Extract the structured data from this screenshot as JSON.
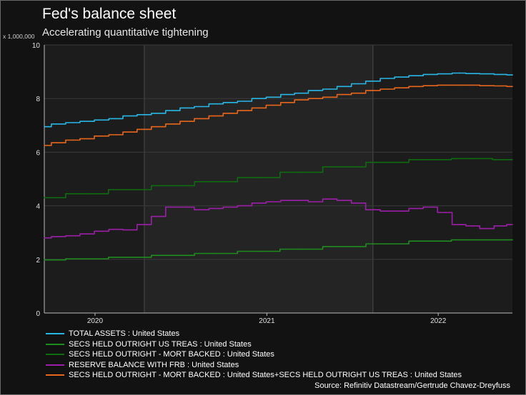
{
  "header": {
    "title": "Fed's balance sheet",
    "subtitle": "Accelerating quantitative tightening",
    "y_unit": "x 1,000,000"
  },
  "source": "Source: Refinitiv Datastream/Gertrude Chavez-Dreyfuss",
  "colors": {
    "background": "#121212",
    "plot_light": "#1c1c1c",
    "plot_dark": "#242424",
    "grid": "#3a3a3a",
    "axis": "#bbbbbb"
  },
  "chart_data": {
    "type": "line",
    "title": "Fed's balance sheet",
    "subtitle": "Accelerating quantitative tightening",
    "ylabel": "",
    "y_multiplier_label": "x 1,000,000",
    "ylim": [
      0,
      10
    ],
    "yticks": [
      0,
      2,
      4,
      6,
      8,
      10
    ],
    "x_range": [
      "2019-09-15",
      "2022-06-08"
    ],
    "x_ticks": [
      {
        "label": "2020",
        "date": "2020-01-01"
      },
      {
        "label": "2021",
        "date": "2021-01-01"
      },
      {
        "label": "2022",
        "date": "2022-01-01"
      }
    ],
    "shaded_band": [
      "2020-04-15",
      "2021-08-15"
    ],
    "legend_position": "bottom",
    "grid": true,
    "series": [
      {
        "name": "TOTAL ASSETS : United States",
        "color": "#29b6e6",
        "x": [
          "2019-09-15",
          "2019-10-15",
          "2019-11-15",
          "2019-12-15",
          "2020-01-15",
          "2020-02-15",
          "2020-03-15",
          "2020-04-15",
          "2020-05-15",
          "2020-06-15",
          "2020-07-15",
          "2020-08-15",
          "2020-09-15",
          "2020-10-15",
          "2020-11-15",
          "2020-12-15",
          "2021-01-15",
          "2021-02-15",
          "2021-03-15",
          "2021-04-15",
          "2021-05-15",
          "2021-06-15",
          "2021-07-15",
          "2021-08-15",
          "2021-09-15",
          "2021-10-15",
          "2021-11-15",
          "2021-12-15",
          "2022-01-15",
          "2022-02-15",
          "2022-03-15",
          "2022-04-15",
          "2022-05-15",
          "2022-06-08"
        ],
        "values": [
          6.95,
          7.05,
          7.1,
          7.15,
          7.2,
          7.25,
          7.35,
          7.4,
          7.45,
          7.55,
          7.65,
          7.7,
          7.8,
          7.85,
          7.9,
          8.0,
          8.05,
          8.15,
          8.2,
          8.3,
          8.35,
          8.45,
          8.55,
          8.65,
          8.75,
          8.8,
          8.85,
          8.9,
          8.92,
          8.95,
          8.93,
          8.92,
          8.9,
          8.88
        ]
      },
      {
        "name": "SECS HELD OUTRIGHT US TREAS : United States",
        "color": "#1f8c1f",
        "x": [
          "2019-09-15",
          "2019-12-15",
          "2020-03-15",
          "2020-06-15",
          "2020-09-15",
          "2020-12-15",
          "2021-03-15",
          "2021-06-15",
          "2021-09-15",
          "2021-12-15",
          "2022-03-15",
          "2022-06-08"
        ],
        "values": [
          1.98,
          2.02,
          2.08,
          2.15,
          2.22,
          2.3,
          2.38,
          2.48,
          2.58,
          2.68,
          2.73,
          2.73
        ]
      },
      {
        "name": "SECS HELD OUTRIGHT - MORT BACKED : United States",
        "color": "#0f6b0f",
        "x": [
          "2019-09-15",
          "2019-12-15",
          "2020-03-15",
          "2020-06-15",
          "2020-09-15",
          "2020-12-15",
          "2021-03-15",
          "2021-06-15",
          "2021-09-15",
          "2021-12-15",
          "2022-03-15",
          "2022-06-08"
        ],
        "values": [
          4.3,
          4.45,
          4.6,
          4.75,
          4.9,
          5.05,
          5.25,
          5.45,
          5.62,
          5.72,
          5.76,
          5.72
        ]
      },
      {
        "name": "RESERVE BALANCE WITH FRB : United States",
        "color": "#9b1fa8",
        "x": [
          "2019-09-15",
          "2019-10-15",
          "2019-11-15",
          "2019-12-15",
          "2020-01-15",
          "2020-02-15",
          "2020-03-15",
          "2020-04-15",
          "2020-05-15",
          "2020-06-15",
          "2020-07-15",
          "2020-08-15",
          "2020-09-15",
          "2020-10-15",
          "2020-11-15",
          "2020-12-15",
          "2021-01-15",
          "2021-02-15",
          "2021-03-15",
          "2021-04-15",
          "2021-05-15",
          "2021-06-15",
          "2021-07-15",
          "2021-08-15",
          "2021-09-15",
          "2021-10-15",
          "2021-11-15",
          "2021-12-15",
          "2022-01-15",
          "2022-02-15",
          "2022-03-15",
          "2022-04-15",
          "2022-05-15",
          "2022-06-08"
        ],
        "values": [
          2.8,
          2.85,
          2.88,
          2.95,
          3.05,
          3.12,
          3.1,
          3.3,
          3.6,
          3.95,
          3.95,
          3.85,
          3.9,
          3.95,
          4.0,
          4.1,
          4.15,
          4.2,
          4.2,
          4.15,
          4.25,
          4.2,
          4.1,
          3.85,
          3.8,
          3.8,
          3.9,
          3.95,
          3.75,
          3.3,
          3.25,
          3.15,
          3.25,
          3.3
        ]
      },
      {
        "name": "SECS HELD OUTRIGHT - MORT BACKED : United States+SECS HELD OUTRIGHT US TREAS : United States",
        "color": "#e8661c",
        "x": [
          "2019-09-15",
          "2019-10-15",
          "2019-11-15",
          "2019-12-15",
          "2020-01-15",
          "2020-02-15",
          "2020-03-15",
          "2020-04-15",
          "2020-05-15",
          "2020-06-15",
          "2020-07-15",
          "2020-08-15",
          "2020-09-15",
          "2020-10-15",
          "2020-11-15",
          "2020-12-15",
          "2021-01-15",
          "2021-02-15",
          "2021-03-15",
          "2021-04-15",
          "2021-05-15",
          "2021-06-15",
          "2021-07-15",
          "2021-08-15",
          "2021-09-15",
          "2021-10-15",
          "2021-11-15",
          "2021-12-15",
          "2022-01-15",
          "2022-02-15",
          "2022-03-15",
          "2022-04-15",
          "2022-05-15",
          "2022-06-08"
        ],
        "values": [
          6.25,
          6.35,
          6.45,
          6.5,
          6.6,
          6.65,
          6.75,
          6.85,
          6.95,
          7.05,
          7.15,
          7.25,
          7.35,
          7.45,
          7.55,
          7.65,
          7.75,
          7.85,
          7.95,
          8.0,
          8.05,
          8.15,
          8.2,
          8.3,
          8.35,
          8.4,
          8.45,
          8.48,
          8.5,
          8.5,
          8.5,
          8.48,
          8.47,
          8.45
        ]
      }
    ]
  }
}
